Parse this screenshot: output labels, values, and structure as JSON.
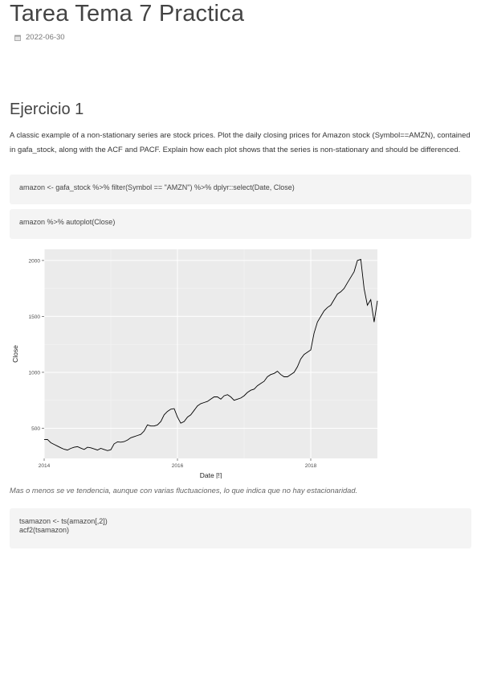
{
  "header": {
    "title": "Tarea Tema 7 Practica",
    "date": "2022-06-30",
    "date_icon": "calendar-icon"
  },
  "section": {
    "heading": "Ejercicio 1",
    "paragraph": "A classic example of a non-stationary series are stock prices. Plot the daily closing prices for Amazon stock (Symbol==AMZN), contained in gafa_stock, along with the ACF and PACF. Explain how each plot shows that the series is non-stationary and should be differenced.",
    "code_blocks": [
      {
        "lines": [
          "amazon <- gafa_stock %>% filter(Symbol == \"AMZN\") %>% dplyr::select(Date, Close)"
        ]
      },
      {
        "lines": [
          "amazon %>% autoplot(Close)"
        ]
      },
      {
        "lines": [
          "tsamazon <- ts(amazon[,2])",
          "acf2(tsamazon)"
        ]
      }
    ],
    "comment": "Mas o menos se ve tendencia, aunque con varias fluctuaciones, lo que indica que no hay estacionaridad."
  },
  "chart_data": {
    "type": "line",
    "title": "",
    "xlabel": "Date [!]",
    "ylabel": "Close",
    "x_ticks": [
      "2014",
      "2016",
      "2018"
    ],
    "y_ticks": [
      500,
      1000,
      1500,
      2000
    ],
    "xlim": [
      2014.0,
      2019.0
    ],
    "ylim": [
      230,
      2100
    ],
    "grid": true,
    "background": "#ebebeb",
    "line_color": "#000000",
    "series": [
      {
        "x": [
          2014.0,
          2014.05,
          2014.1,
          2014.15,
          2014.2,
          2014.25,
          2014.3,
          2014.35,
          2014.4,
          2014.45,
          2014.5,
          2014.55,
          2014.6,
          2014.65,
          2014.7,
          2014.75,
          2014.8,
          2014.85,
          2014.9,
          2014.95,
          2015.0,
          2015.05,
          2015.1,
          2015.15,
          2015.2,
          2015.25,
          2015.3,
          2015.35,
          2015.4,
          2015.45,
          2015.5,
          2015.55,
          2015.6,
          2015.65,
          2015.7,
          2015.75,
          2015.8,
          2015.85,
          2015.9,
          2015.95,
          2016.0,
          2016.05,
          2016.1,
          2016.15,
          2016.2,
          2016.25,
          2016.3,
          2016.35,
          2016.4,
          2016.45,
          2016.5,
          2016.55,
          2016.6,
          2016.65,
          2016.7,
          2016.75,
          2016.8,
          2016.85,
          2016.9,
          2016.95,
          2017.0,
          2017.05,
          2017.1,
          2017.15,
          2017.2,
          2017.25,
          2017.3,
          2017.35,
          2017.4,
          2017.45,
          2017.5,
          2017.55,
          2017.6,
          2017.65,
          2017.7,
          2017.75,
          2017.8,
          2017.85,
          2017.9,
          2017.95,
          2018.0,
          2018.05,
          2018.1,
          2018.15,
          2018.2,
          2018.25,
          2018.3,
          2018.35,
          2018.4,
          2018.45,
          2018.5,
          2018.55,
          2018.6,
          2018.65,
          2018.7,
          2018.75,
          2018.8,
          2018.85,
          2018.9,
          2018.95,
          2019.0
        ],
        "y": [
          398,
          400,
          370,
          355,
          340,
          325,
          312,
          305,
          320,
          330,
          335,
          322,
          310,
          330,
          325,
          315,
          305,
          320,
          310,
          300,
          308,
          360,
          378,
          375,
          380,
          395,
          415,
          425,
          435,
          445,
          475,
          530,
          520,
          520,
          530,
          560,
          620,
          650,
          670,
          675,
          600,
          545,
          560,
          600,
          620,
          660,
          700,
          720,
          730,
          740,
          760,
          780,
          780,
          760,
          790,
          800,
          780,
          750,
          760,
          770,
          790,
          820,
          840,
          850,
          880,
          900,
          920,
          960,
          980,
          990,
          1010,
          980,
          960,
          960,
          980,
          1000,
          1050,
          1120,
          1160,
          1180,
          1200,
          1350,
          1450,
          1500,
          1550,
          1580,
          1600,
          1650,
          1700,
          1720,
          1750,
          1800,
          1850,
          1900,
          2000,
          2010,
          1750,
          1600,
          1650,
          1450,
          1640
        ]
      }
    ]
  }
}
